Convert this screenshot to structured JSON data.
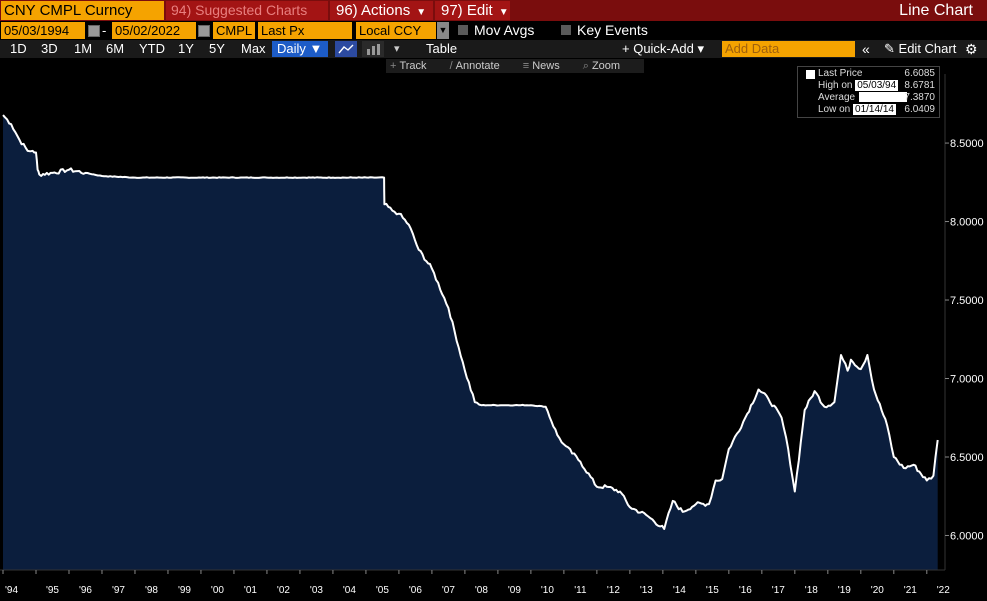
{
  "header": {
    "ticker": "CNY CMPL Curncy",
    "suggested": "94) Suggested Charts",
    "actions": "96) Actions",
    "edit": "97) Edit",
    "chart_type": "Line Chart"
  },
  "controls": {
    "start_date": "05/03/1994",
    "end_date": "05/02/2022",
    "date_sep": "-",
    "source": "CMPL",
    "field": "Last Px",
    "currency": "Local CCY",
    "mov_avgs": "Mov Avgs",
    "key_events": "Key Events"
  },
  "periods": [
    "1D",
    "3D",
    "1M",
    "6M",
    "YTD",
    "1Y",
    "5Y",
    "Max"
  ],
  "frequency": "Daily ▼",
  "toolbar": {
    "table": "Table",
    "quick_add": "+ Quick-Add ▾",
    "add_data_placeholder": "Add Data",
    "edit_chart": "Edit Chart"
  },
  "chart_tools": [
    "Track",
    "Annotate",
    "News",
    "Zoom"
  ],
  "legend": {
    "last_label": "Last Price",
    "last_value": "6.6085",
    "high_prefix": "High on",
    "high_date": "05/03/94",
    "high_value": "8.6781",
    "avg_label": "Average",
    "avg_value": "7.3870",
    "low_prefix": "Low on",
    "low_date": "01/14/14",
    "low_value": "6.0409"
  },
  "colors": {
    "accent": "#f5a300",
    "header_bg": "#7a0d0d",
    "fill": "#0b1e3d",
    "line": "#ffffff"
  },
  "chart_data": {
    "type": "area",
    "title": "",
    "xlabel": "",
    "ylabel": "",
    "ylim": [
      5.78,
      8.94
    ],
    "xlim": [
      1994.0,
      2022.4
    ],
    "y_ticks": [
      6.0,
      6.5,
      7.0,
      7.5,
      8.0,
      8.5
    ],
    "y_tick_labels": [
      "6.0000",
      "6.5000",
      "7.0000",
      "7.5000",
      "8.0000",
      "8.5000"
    ],
    "x_ticks": [
      1994,
      1995,
      1996,
      1997,
      1998,
      1999,
      2000,
      2001,
      2002,
      2003,
      2004,
      2005,
      2006,
      2007,
      2008,
      2009,
      2010,
      2011,
      2012,
      2013,
      2014,
      2015,
      2016,
      2017,
      2018,
      2019,
      2020,
      2021,
      2022
    ],
    "x_tick_labels": [
      "'94",
      "'95",
      "'96",
      "'97",
      "'98",
      "'99",
      "'00",
      "'01",
      "'02",
      "'03",
      "'04",
      "'05",
      "'06",
      "'07",
      "'08",
      "'09",
      "'10",
      "'11",
      "'12",
      "'13",
      "'14",
      "'15",
      "'16",
      "'17",
      "'18",
      "'19",
      "'20",
      "'21",
      "'22"
    ],
    "series": [
      {
        "x": [
          1994.0,
          1994.25,
          1994.5,
          1994.75,
          1994.9,
          1995.0,
          1995.05,
          1995.1,
          1995.5,
          1996.0,
          1996.5,
          1997.0,
          1998.0,
          2000.0,
          2002.0,
          2004.0,
          2005.55,
          2005.56,
          2005.8,
          2006.0,
          2006.3,
          2006.6,
          2007.0,
          2007.5,
          2008.0,
          2008.3,
          2008.5,
          2008.8,
          2009.5,
          2010.0,
          2010.45,
          2010.8,
          2011.0,
          2011.5,
          2012.0,
          2012.3,
          2012.7,
          2013.0,
          2013.5,
          2014.04,
          2014.3,
          2014.6,
          2015.0,
          2015.4,
          2015.6,
          2015.8,
          2016.0,
          2016.5,
          2016.9,
          2017.2,
          2017.6,
          2017.8,
          2018.0,
          2018.3,
          2018.6,
          2018.9,
          2019.2,
          2019.4,
          2019.6,
          2019.7,
          2020.0,
          2020.2,
          2020.4,
          2020.8,
          2021.0,
          2021.3,
          2021.6,
          2022.0,
          2022.2,
          2022.33
        ],
        "y": [
          8.6781,
          8.62,
          8.52,
          8.45,
          8.45,
          8.44,
          8.33,
          8.3,
          8.31,
          8.33,
          8.31,
          8.29,
          8.28,
          8.28,
          8.28,
          8.28,
          8.28,
          8.11,
          8.07,
          8.05,
          7.98,
          7.82,
          7.7,
          7.45,
          7.05,
          6.85,
          6.83,
          6.83,
          6.83,
          6.83,
          6.82,
          6.64,
          6.58,
          6.47,
          6.31,
          6.31,
          6.28,
          6.18,
          6.13,
          6.0409,
          6.22,
          6.15,
          6.2,
          6.2,
          6.35,
          6.36,
          6.55,
          6.75,
          6.93,
          6.87,
          6.75,
          6.55,
          6.28,
          6.8,
          6.92,
          6.82,
          6.85,
          7.15,
          7.05,
          7.12,
          7.06,
          7.15,
          6.93,
          6.7,
          6.5,
          6.43,
          6.45,
          6.35,
          6.38,
          6.6085
        ]
      }
    ]
  }
}
